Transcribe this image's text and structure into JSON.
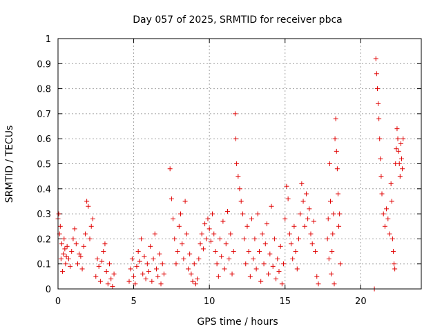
{
  "chart_data": {
    "type": "scatter",
    "title": "Day 057 of 2025, SRMTID for receiver pbca",
    "xlabel": "GPS time / hours",
    "ylabel": "SRMTID / TECUs",
    "xlim": [
      0,
      24
    ],
    "ylim": [
      0,
      1
    ],
    "xticks": [
      0,
      5,
      10,
      15,
      20
    ],
    "xtick_labels": [
      "0",
      "5",
      "10",
      "15",
      "20"
    ],
    "yticks": [
      0,
      0.1,
      0.2,
      0.3,
      0.4,
      0.5,
      0.6,
      0.7,
      0.8,
      0.9,
      1
    ],
    "ytick_labels": [
      "0",
      "0.1",
      "0.2",
      "0.3",
      "0.4",
      "0.5",
      "0.6",
      "0.7",
      "0.8",
      "0.9",
      "1"
    ],
    "grid": true,
    "marker": "+",
    "series_color": "#e00000",
    "series": [
      {
        "name": "SRMTID",
        "points": [
          [
            0.0,
            0.28
          ],
          [
            0.05,
            0.3
          ],
          [
            0.1,
            0.22
          ],
          [
            0.15,
            0.25
          ],
          [
            0.2,
            0.12
          ],
          [
            0.25,
            0.18
          ],
          [
            0.3,
            0.07
          ],
          [
            0.35,
            0.14
          ],
          [
            0.4,
            0.2
          ],
          [
            0.45,
            0.16
          ],
          [
            0.5,
            0.1
          ],
          [
            0.55,
            0.13
          ],
          [
            0.6,
            0.17
          ],
          [
            0.7,
            0.12
          ],
          [
            0.8,
            0.09
          ],
          [
            0.9,
            0.15
          ],
          [
            1.0,
            0.2
          ],
          [
            1.1,
            0.24
          ],
          [
            1.2,
            0.18
          ],
          [
            1.3,
            0.1
          ],
          [
            1.4,
            0.14
          ],
          [
            1.5,
            0.13
          ],
          [
            1.6,
            0.08
          ],
          [
            1.7,
            0.17
          ],
          [
            1.8,
            0.22
          ],
          [
            1.9,
            0.35
          ],
          [
            2.0,
            0.33
          ],
          [
            2.1,
            0.2
          ],
          [
            2.2,
            0.25
          ],
          [
            2.3,
            0.28
          ],
          [
            2.5,
            0.05
          ],
          [
            2.6,
            0.12
          ],
          [
            2.7,
            0.09
          ],
          [
            2.8,
            0.03
          ],
          [
            2.9,
            0.11
          ],
          [
            3.0,
            0.15
          ],
          [
            3.1,
            0.18
          ],
          [
            3.2,
            0.07
          ],
          [
            3.3,
            0.02
          ],
          [
            3.4,
            0.1
          ],
          [
            3.5,
            0.04
          ],
          [
            3.6,
            0.01
          ],
          [
            3.7,
            0.06
          ],
          [
            4.7,
            0.03
          ],
          [
            4.8,
            0.08
          ],
          [
            4.9,
            0.12
          ],
          [
            5.0,
            0.05
          ],
          [
            5.1,
            0.02
          ],
          [
            5.2,
            0.09
          ],
          [
            5.3,
            0.15
          ],
          [
            5.4,
            0.11
          ],
          [
            5.5,
            0.2
          ],
          [
            5.6,
            0.06
          ],
          [
            5.7,
            0.13
          ],
          [
            5.8,
            0.04
          ],
          [
            5.9,
            0.1
          ],
          [
            6.0,
            0.07
          ],
          [
            6.1,
            0.17
          ],
          [
            6.2,
            0.03
          ],
          [
            6.3,
            0.12
          ],
          [
            6.4,
            0.22
          ],
          [
            6.5,
            0.08
          ],
          [
            6.6,
            0.05
          ],
          [
            6.7,
            0.14
          ],
          [
            6.8,
            0.02
          ],
          [
            6.9,
            0.1
          ],
          [
            7.0,
            0.06
          ],
          [
            7.4,
            0.48
          ],
          [
            7.5,
            0.36
          ],
          [
            7.6,
            0.28
          ],
          [
            7.7,
            0.2
          ],
          [
            7.8,
            0.1
          ],
          [
            7.9,
            0.15
          ],
          [
            8.0,
            0.25
          ],
          [
            8.1,
            0.3
          ],
          [
            8.2,
            0.18
          ],
          [
            8.3,
            0.12
          ],
          [
            8.4,
            0.35
          ],
          [
            8.5,
            0.22
          ],
          [
            8.6,
            0.08
          ],
          [
            8.7,
            0.14
          ],
          [
            8.8,
            0.06
          ],
          [
            8.9,
            0.03
          ],
          [
            9.0,
            0.1
          ],
          [
            9.1,
            0.02
          ],
          [
            9.2,
            0.04
          ],
          [
            9.3,
            0.12
          ],
          [
            9.4,
            0.18
          ],
          [
            9.5,
            0.22
          ],
          [
            9.6,
            0.16
          ],
          [
            9.7,
            0.26
          ],
          [
            9.8,
            0.2
          ],
          [
            9.9,
            0.28
          ],
          [
            10.0,
            0.24
          ],
          [
            10.1,
            0.19
          ],
          [
            10.2,
            0.3
          ],
          [
            10.3,
            0.22
          ],
          [
            10.4,
            0.15
          ],
          [
            10.5,
            0.1
          ],
          [
            10.6,
            0.05
          ],
          [
            10.7,
            0.2
          ],
          [
            10.8,
            0.13
          ],
          [
            10.9,
            0.27
          ],
          [
            11.0,
            0.08
          ],
          [
            11.1,
            0.18
          ],
          [
            11.2,
            0.31
          ],
          [
            11.3,
            0.12
          ],
          [
            11.4,
            0.22
          ],
          [
            11.5,
            0.06
          ],
          [
            11.6,
            0.15
          ],
          [
            11.7,
            0.7
          ],
          [
            11.75,
            0.6
          ],
          [
            11.8,
            0.5
          ],
          [
            11.9,
            0.45
          ],
          [
            12.0,
            0.4
          ],
          [
            12.1,
            0.35
          ],
          [
            12.2,
            0.3
          ],
          [
            12.3,
            0.2
          ],
          [
            12.4,
            0.1
          ],
          [
            12.5,
            0.25
          ],
          [
            12.6,
            0.15
          ],
          [
            12.7,
            0.05
          ],
          [
            12.8,
            0.28
          ],
          [
            12.9,
            0.12
          ],
          [
            13.0,
            0.2
          ],
          [
            13.1,
            0.08
          ],
          [
            13.2,
            0.3
          ],
          [
            13.3,
            0.15
          ],
          [
            13.4,
            0.03
          ],
          [
            13.5,
            0.22
          ],
          [
            13.6,
            0.1
          ],
          [
            13.7,
            0.18
          ],
          [
            13.8,
            0.26
          ],
          [
            13.9,
            0.06
          ],
          [
            14.0,
            0.14
          ],
          [
            14.1,
            0.33
          ],
          [
            14.2,
            0.09
          ],
          [
            14.3,
            0.2
          ],
          [
            14.4,
            0.04
          ],
          [
            14.5,
            0.12
          ],
          [
            14.6,
            0.07
          ],
          [
            14.7,
            0.17
          ],
          [
            14.8,
            0.02
          ],
          [
            14.9,
            0.1
          ],
          [
            15.0,
            0.28
          ],
          [
            15.1,
            0.41
          ],
          [
            15.2,
            0.36
          ],
          [
            15.3,
            0.22
          ],
          [
            15.4,
            0.18
          ],
          [
            15.5,
            0.12
          ],
          [
            15.6,
            0.25
          ],
          [
            15.7,
            0.15
          ],
          [
            15.8,
            0.08
          ],
          [
            15.9,
            0.2
          ],
          [
            16.0,
            0.3
          ],
          [
            16.1,
            0.42
          ],
          [
            16.2,
            0.35
          ],
          [
            16.3,
            0.25
          ],
          [
            16.4,
            0.38
          ],
          [
            16.5,
            0.28
          ],
          [
            16.6,
            0.32
          ],
          [
            16.7,
            0.22
          ],
          [
            16.8,
            0.18
          ],
          [
            16.9,
            0.27
          ],
          [
            17.0,
            0.15
          ],
          [
            17.1,
            0.05
          ],
          [
            17.2,
            0.02
          ],
          [
            17.8,
            0.2
          ],
          [
            17.85,
            0.28
          ],
          [
            17.9,
            0.12
          ],
          [
            17.95,
            0.5
          ],
          [
            18.0,
            0.35
          ],
          [
            18.05,
            0.06
          ],
          [
            18.1,
            0.15
          ],
          [
            18.15,
            0.22
          ],
          [
            18.2,
            0.3
          ],
          [
            18.25,
            0.02
          ],
          [
            18.3,
            0.6
          ],
          [
            18.35,
            0.68
          ],
          [
            18.4,
            0.55
          ],
          [
            18.45,
            0.48
          ],
          [
            18.5,
            0.38
          ],
          [
            18.55,
            0.25
          ],
          [
            18.6,
            0.3
          ],
          [
            18.65,
            0.1
          ],
          [
            20.9,
            0.0
          ],
          [
            21.0,
            0.92
          ],
          [
            21.05,
            0.86
          ],
          [
            21.1,
            0.8
          ],
          [
            21.15,
            0.74
          ],
          [
            21.2,
            0.68
          ],
          [
            21.25,
            0.6
          ],
          [
            21.3,
            0.52
          ],
          [
            21.35,
            0.45
          ],
          [
            21.4,
            0.38
          ],
          [
            21.5,
            0.3
          ],
          [
            21.6,
            0.25
          ],
          [
            21.7,
            0.32
          ],
          [
            21.8,
            0.28
          ],
          [
            21.9,
            0.22
          ],
          [
            22.0,
            0.42
          ],
          [
            22.05,
            0.35
          ],
          [
            22.1,
            0.2
          ],
          [
            22.15,
            0.15
          ],
          [
            22.2,
            0.1
          ],
          [
            22.25,
            0.08
          ],
          [
            22.3,
            0.5
          ],
          [
            22.35,
            0.56
          ],
          [
            22.4,
            0.64
          ],
          [
            22.45,
            0.6
          ],
          [
            22.5,
            0.55
          ],
          [
            22.55,
            0.5
          ],
          [
            22.6,
            0.45
          ],
          [
            22.65,
            0.58
          ],
          [
            22.7,
            0.52
          ],
          [
            22.75,
            0.48
          ],
          [
            22.8,
            0.6
          ]
        ]
      }
    ]
  }
}
